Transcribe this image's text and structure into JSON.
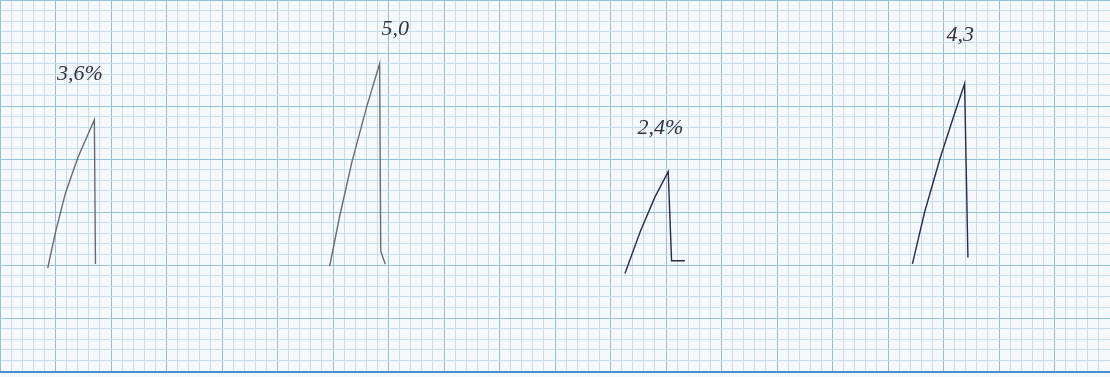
{
  "chart_data": {
    "type": "line",
    "series": [
      {
        "color": "#6b6b6b",
        "x": [
          4.3,
          5.0,
          5.9,
          7.0,
          8.5,
          8.6
        ],
        "values": [
          9.7,
          13.1,
          16.8,
          20.1,
          23.7,
          10.1
        ]
      },
      {
        "color": "#6b6b6b",
        "x": [
          29.7,
          30.6,
          31.7,
          33.0,
          34.2,
          34.3,
          34.7
        ],
        "values": [
          9.9,
          14.6,
          19.7,
          24.8,
          29.0,
          11.3,
          10.1
        ]
      },
      {
        "color": "#2a2a4a",
        "x": [
          56.3,
          57.7,
          59.0,
          60.2,
          60.5,
          61.7
        ],
        "values": [
          9.2,
          13.2,
          16.4,
          18.8,
          10.4,
          10.4
        ]
      },
      {
        "color": "#2a2a4a",
        "x": [
          82.2,
          83.3,
          84.7,
          86.0,
          86.9,
          87.2
        ],
        "values": [
          10.1,
          15.0,
          20.1,
          24.3,
          27.1,
          10.7
        ]
      }
    ],
    "annotations": [
      {
        "text": "3,6%",
        "x": 7.2,
        "y": 28.0
      },
      {
        "text": "5,0",
        "x": 35.6,
        "y": 32.2
      },
      {
        "text": "2,4%",
        "x": 59.5,
        "y": 22.9
      },
      {
        "text": "4,3",
        "x": 86.5,
        "y": 31.7
      }
    ],
    "xlim": [
      0,
      100
    ],
    "ylim": [
      0,
      35
    ],
    "xticks": [
      0,
      1,
      2,
      3,
      4,
      5,
      6,
      7,
      8,
      9,
      10,
      11,
      12,
      13,
      14,
      15,
      16,
      17,
      18,
      19,
      20,
      21,
      22,
      23,
      24,
      25,
      26,
      27,
      28,
      29,
      30,
      31,
      32,
      33,
      34,
      35,
      36,
      37,
      38,
      39,
      40,
      41,
      42,
      43,
      44,
      45,
      46,
      47,
      48,
      49,
      50,
      51,
      52,
      53,
      54,
      55,
      56,
      57,
      58,
      59,
      60,
      61,
      62,
      63,
      64,
      65,
      66,
      67,
      68,
      69,
      70,
      71,
      72,
      73,
      74,
      75,
      76,
      77,
      78,
      79,
      80,
      81,
      82,
      83,
      84,
      85,
      86,
      87,
      88,
      89,
      90,
      91,
      92,
      93,
      94,
      95,
      96,
      97,
      98,
      99,
      100
    ],
    "yticks": [
      0,
      1,
      2,
      3,
      4,
      5,
      6,
      7,
      8,
      9,
      10,
      11,
      12,
      13,
      14,
      15,
      16,
      17,
      18,
      19,
      20,
      21,
      22,
      23,
      24,
      25,
      26,
      27,
      28,
      29,
      30,
      31,
      32,
      33,
      34,
      35
    ],
    "grid": true,
    "tick_labels": false
  }
}
